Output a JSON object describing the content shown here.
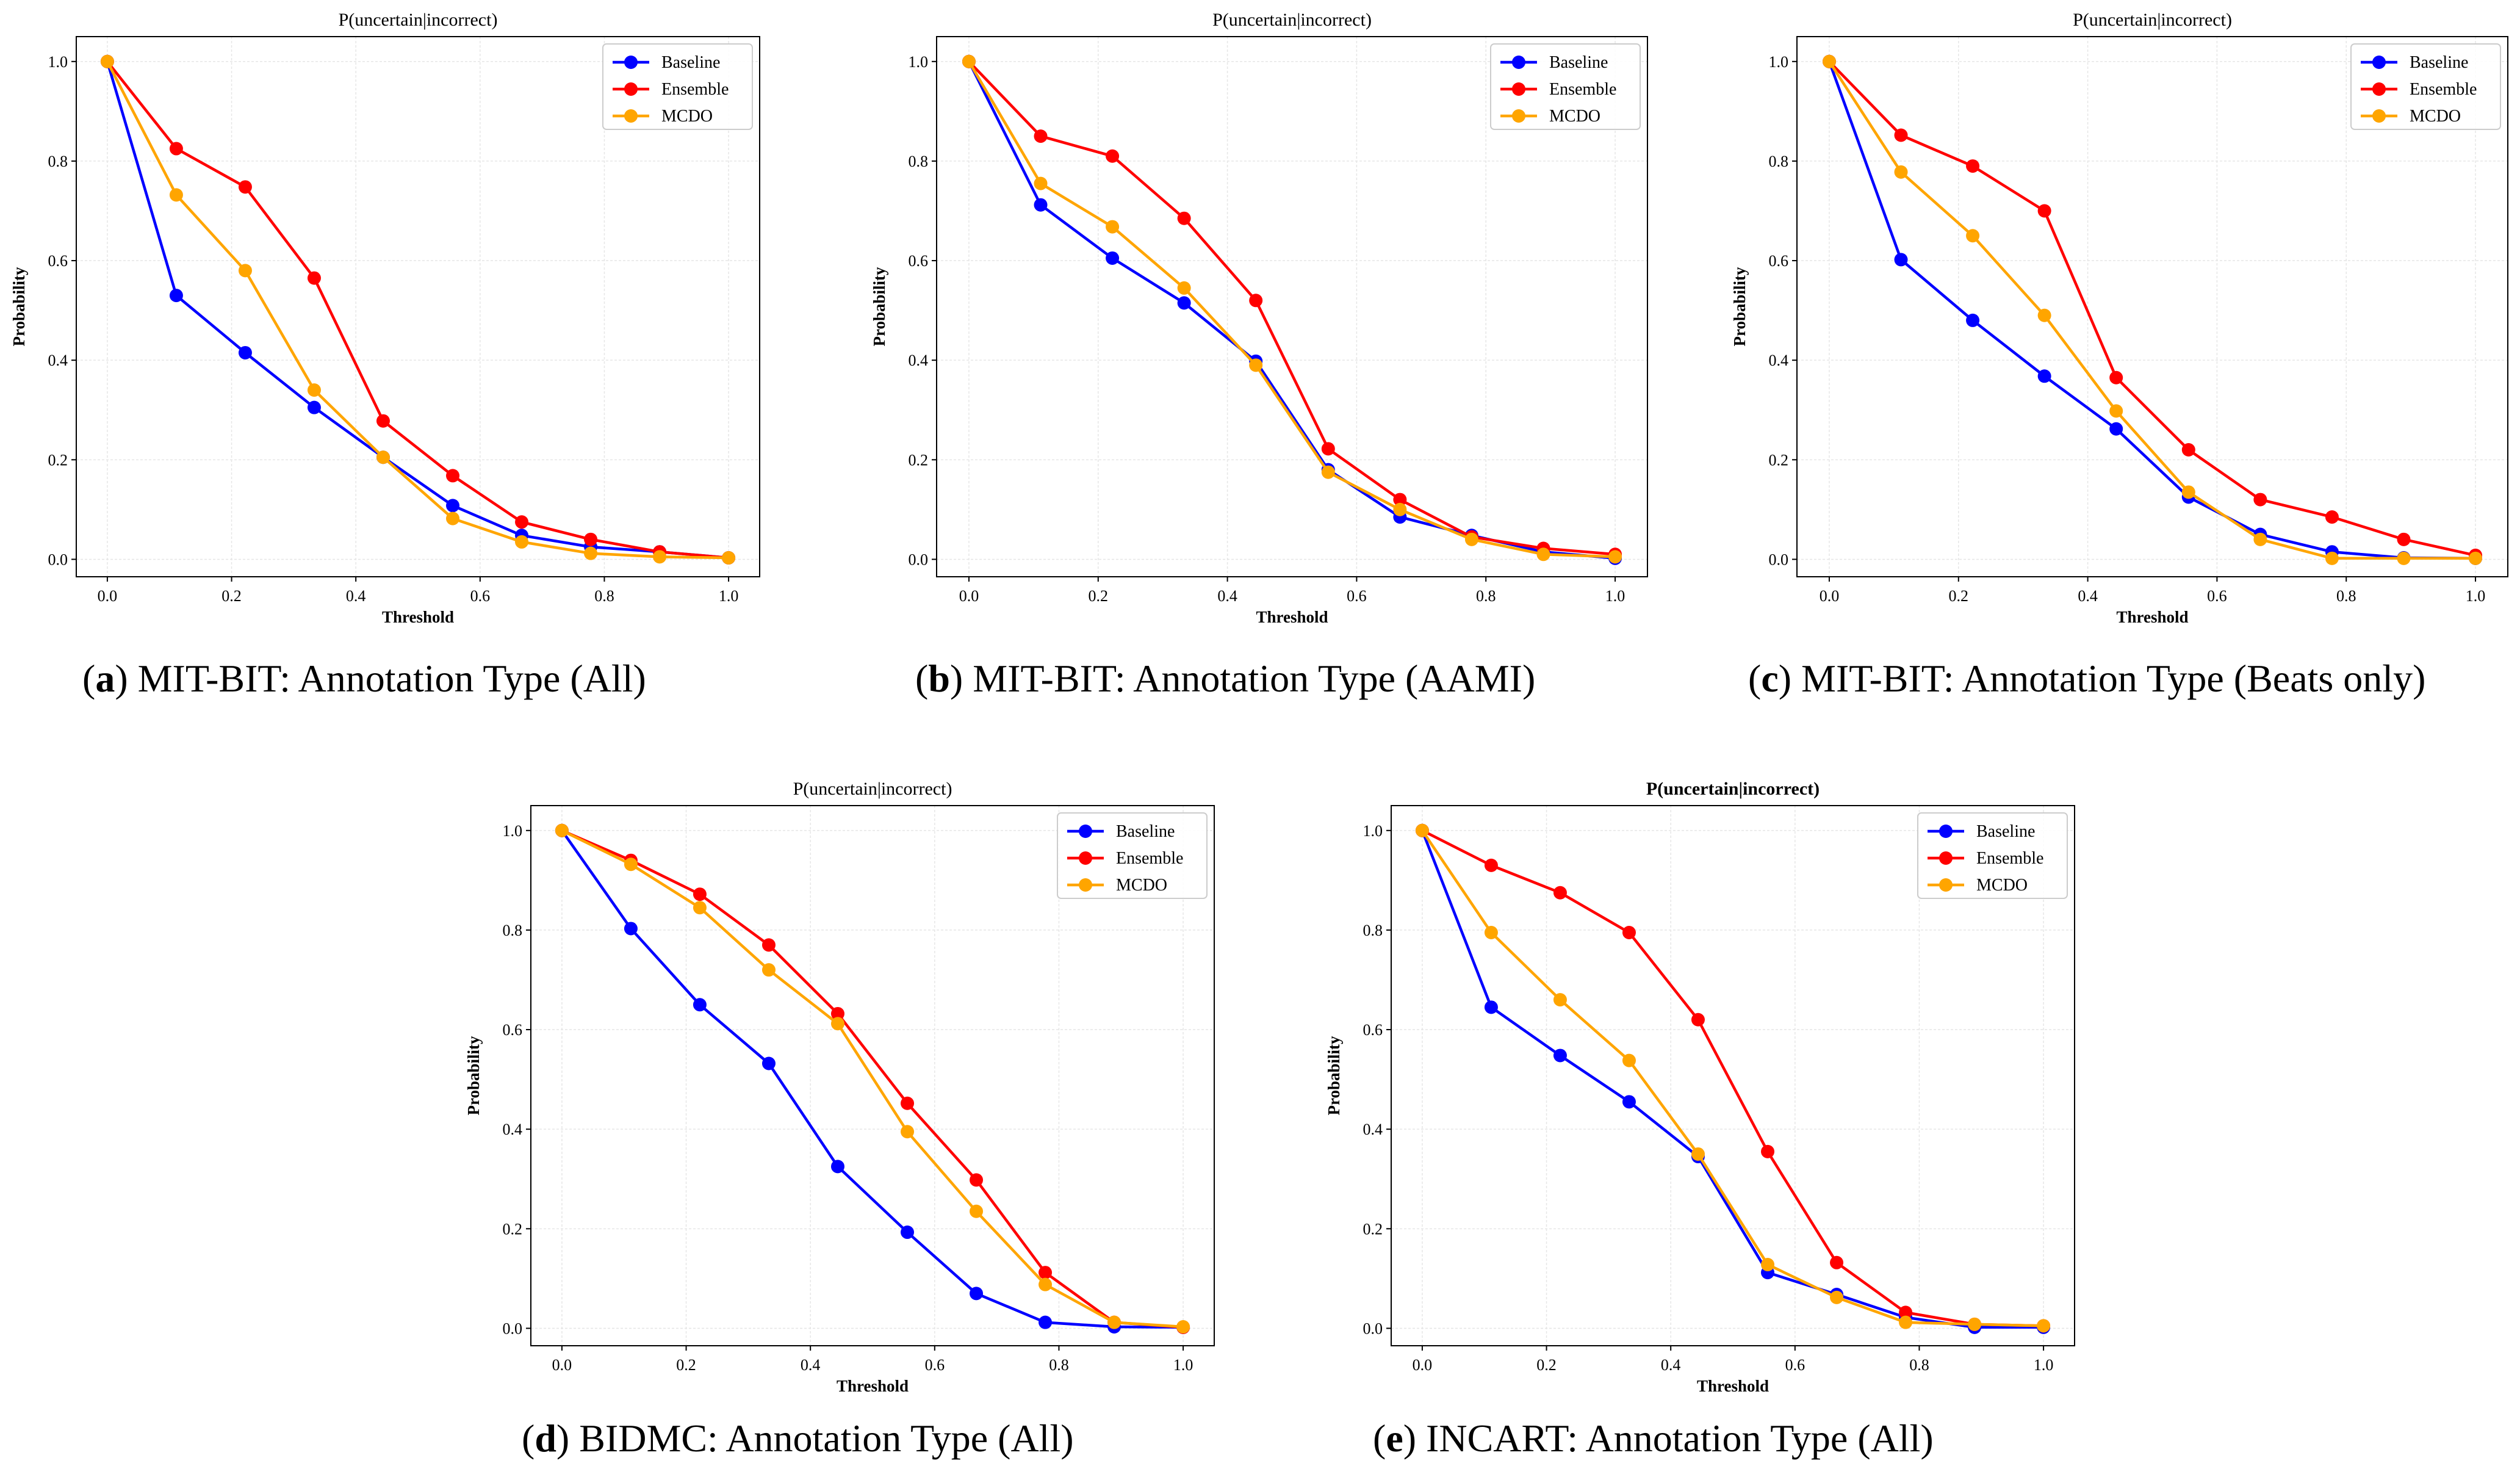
{
  "x_ticks": [
    "0.0",
    "0.2",
    "0.4",
    "0.6",
    "0.8",
    "1.0"
  ],
  "y_ticks": [
    "0.0",
    "0.2",
    "0.4",
    "0.6",
    "0.8",
    "1.0"
  ],
  "legend": [
    "Baseline",
    "Ensemble",
    "MCDO"
  ],
  "colors": {
    "Baseline": "#0000ff",
    "Ensemble": "#ff0000",
    "MCDO": "#ffa500"
  },
  "chart_data": [
    {
      "type": "line",
      "title": "P(uncertain|incorrect)",
      "xlabel": "Threshold",
      "ylabel": "Probability",
      "caption_letter": "a",
      "caption_text": "MIT-BIT: Annotation Type (All)",
      "xlim": [
        0,
        1
      ],
      "ylim": [
        0,
        1
      ],
      "x": [
        0.0,
        0.111,
        0.222,
        0.333,
        0.444,
        0.556,
        0.667,
        0.778,
        0.889,
        1.0
      ],
      "series": [
        {
          "name": "Baseline",
          "values": [
            1.0,
            0.53,
            0.415,
            0.305,
            0.205,
            0.108,
            0.048,
            0.025,
            0.015,
            0.003
          ]
        },
        {
          "name": "Ensemble",
          "values": [
            1.0,
            0.825,
            0.748,
            0.565,
            0.278,
            0.168,
            0.075,
            0.04,
            0.015,
            0.003
          ]
        },
        {
          "name": "MCDO",
          "values": [
            1.0,
            0.732,
            0.58,
            0.34,
            0.205,
            0.082,
            0.035,
            0.012,
            0.005,
            0.003
          ]
        }
      ]
    },
    {
      "type": "line",
      "title": "P(uncertain|incorrect)",
      "xlabel": "Threshold",
      "ylabel": "Probability",
      "caption_letter": "b",
      "caption_text": "MIT-BIT: Annotation Type (AAMI)",
      "xlim": [
        0,
        1
      ],
      "ylim": [
        0,
        1
      ],
      "x": [
        0.0,
        0.111,
        0.222,
        0.333,
        0.444,
        0.556,
        0.667,
        0.778,
        0.889,
        1.0
      ],
      "series": [
        {
          "name": "Baseline",
          "values": [
            1.0,
            0.712,
            0.605,
            0.515,
            0.398,
            0.18,
            0.085,
            0.048,
            0.015,
            0.002
          ]
        },
        {
          "name": "Ensemble",
          "values": [
            1.0,
            0.85,
            0.81,
            0.685,
            0.52,
            0.222,
            0.12,
            0.045,
            0.022,
            0.01
          ]
        },
        {
          "name": "MCDO",
          "values": [
            1.0,
            0.755,
            0.668,
            0.545,
            0.39,
            0.175,
            0.1,
            0.04,
            0.01,
            0.005
          ]
        }
      ]
    },
    {
      "type": "line",
      "title": "P(uncertain|incorrect)",
      "xlabel": "Threshold",
      "ylabel": "Probability",
      "caption_letter": "c",
      "caption_text": "MIT-BIT: Annotation Type (Beats only)",
      "xlim": [
        0,
        1
      ],
      "ylim": [
        0,
        1
      ],
      "x": [
        0.0,
        0.111,
        0.222,
        0.333,
        0.444,
        0.556,
        0.667,
        0.778,
        0.889,
        1.0
      ],
      "series": [
        {
          "name": "Baseline",
          "values": [
            1.0,
            0.602,
            0.48,
            0.368,
            0.262,
            0.125,
            0.05,
            0.015,
            0.003,
            0.002
          ]
        },
        {
          "name": "Ensemble",
          "values": [
            1.0,
            0.852,
            0.79,
            0.7,
            0.365,
            0.22,
            0.12,
            0.085,
            0.04,
            0.008
          ]
        },
        {
          "name": "MCDO",
          "values": [
            1.0,
            0.778,
            0.65,
            0.49,
            0.298,
            0.135,
            0.04,
            0.002,
            0.002,
            0.002
          ]
        }
      ]
    },
    {
      "type": "line",
      "title": "P(uncertain|incorrect)",
      "xlabel": "Threshold",
      "ylabel": "Probability",
      "caption_letter": "d",
      "caption_text": "BIDMC: Annotation Type (All)",
      "xlim": [
        0,
        1
      ],
      "ylim": [
        0,
        1
      ],
      "x": [
        0.0,
        0.111,
        0.222,
        0.333,
        0.444,
        0.556,
        0.667,
        0.778,
        0.889,
        1.0
      ],
      "series": [
        {
          "name": "Baseline",
          "values": [
            1.0,
            0.803,
            0.65,
            0.532,
            0.325,
            0.193,
            0.07,
            0.012,
            0.003,
            0.002
          ]
        },
        {
          "name": "Ensemble",
          "values": [
            1.0,
            0.94,
            0.872,
            0.77,
            0.632,
            0.452,
            0.298,
            0.112,
            0.012,
            0.002
          ]
        },
        {
          "name": "MCDO",
          "values": [
            1.0,
            0.932,
            0.845,
            0.72,
            0.612,
            0.395,
            0.235,
            0.088,
            0.012,
            0.003
          ]
        }
      ]
    },
    {
      "type": "line",
      "title": "P(uncertain|incorrect)",
      "title_bold": true,
      "xlabel": "Threshold",
      "ylabel": "Probability",
      "caption_letter": "e",
      "caption_text": "INCART: Annotation Type (All)",
      "xlim": [
        0,
        1
      ],
      "ylim": [
        0,
        1
      ],
      "x": [
        0.0,
        0.111,
        0.222,
        0.333,
        0.444,
        0.556,
        0.667,
        0.778,
        0.889,
        1.0
      ],
      "series": [
        {
          "name": "Baseline",
          "values": [
            1.0,
            0.645,
            0.548,
            0.455,
            0.345,
            0.112,
            0.068,
            0.022,
            0.002,
            0.002
          ]
        },
        {
          "name": "Ensemble",
          "values": [
            1.0,
            0.93,
            0.875,
            0.795,
            0.62,
            0.355,
            0.132,
            0.032,
            0.008,
            0.005
          ]
        },
        {
          "name": "MCDO",
          "values": [
            1.0,
            0.795,
            0.66,
            0.538,
            0.35,
            0.128,
            0.062,
            0.012,
            0.008,
            0.005
          ]
        }
      ]
    }
  ]
}
